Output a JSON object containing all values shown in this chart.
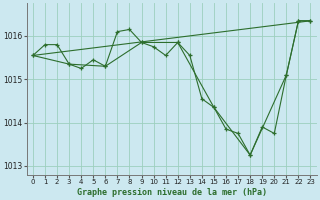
{
  "title": "Graphe pression niveau de la mer (hPa)",
  "bg_color": "#cce8f0",
  "grid_color": "#9dcfbe",
  "line_color": "#2d6e2d",
  "ylim": [
    1012.8,
    1016.75
  ],
  "yticks": [
    1013,
    1014,
    1015,
    1016
  ],
  "xlim": [
    -0.5,
    23.5
  ],
  "xticks": [
    0,
    1,
    2,
    3,
    4,
    5,
    6,
    7,
    8,
    9,
    10,
    11,
    12,
    13,
    14,
    15,
    16,
    17,
    18,
    19,
    20,
    21,
    22,
    23
  ],
  "series_hourly": {
    "x": [
      0,
      1,
      2,
      3,
      4,
      5,
      6,
      7,
      8,
      9,
      10,
      11,
      12,
      13,
      14,
      15,
      16,
      17,
      18,
      19,
      20,
      21,
      22,
      23
    ],
    "y": [
      1015.55,
      1015.8,
      1015.8,
      1015.35,
      1015.25,
      1015.45,
      1015.3,
      1016.1,
      1016.15,
      1015.85,
      1015.75,
      1015.55,
      1015.85,
      1015.55,
      1014.55,
      1014.35,
      1013.85,
      1013.75,
      1013.25,
      1013.9,
      1013.75,
      1015.1,
      1016.35,
      1016.35
    ]
  },
  "series_trend": {
    "x": [
      0,
      23
    ],
    "y": [
      1015.55,
      1016.35
    ]
  },
  "series_sparse": {
    "x": [
      0,
      3,
      6,
      9,
      12,
      15,
      18,
      21,
      22,
      23
    ],
    "y": [
      1015.55,
      1015.35,
      1015.3,
      1015.85,
      1015.85,
      1014.35,
      1013.25,
      1015.1,
      1016.35,
      1016.35
    ]
  }
}
